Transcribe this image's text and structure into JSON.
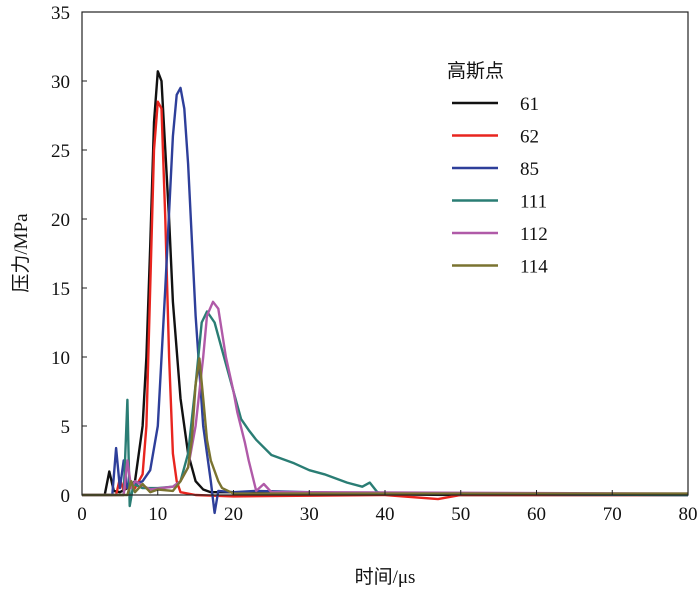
{
  "chart_data": {
    "type": "line",
    "title": "",
    "xlabel": "时间/μs",
    "ylabel": "压力/MPa",
    "xlim": [
      0,
      80
    ],
    "ylim": [
      0,
      35
    ],
    "xticks": [
      0,
      10,
      20,
      30,
      40,
      50,
      60,
      70,
      80
    ],
    "yticks": [
      0,
      5,
      10,
      15,
      20,
      25,
      30,
      35
    ],
    "grid": false,
    "legend": {
      "title": "高斯点",
      "placement": "top-right"
    },
    "series": [
      {
        "name": "61",
        "color": "#111111",
        "x": [
          0,
          3,
          3.6,
          4.2,
          5,
          6,
          7,
          8,
          8.5,
          9,
          9.5,
          10,
          10.5,
          11,
          11.5,
          12,
          13,
          14,
          15,
          16,
          17,
          20,
          30,
          50,
          80
        ],
        "y": [
          0,
          0,
          1.7,
          0.3,
          0.2,
          0.5,
          1,
          5,
          10,
          18,
          27,
          30.7,
          30,
          25,
          20,
          14,
          7,
          3,
          1,
          0.4,
          0.2,
          0.2,
          0.1,
          0,
          0
        ]
      },
      {
        "name": "62",
        "color": "#e8251f",
        "x": [
          0,
          4.5,
          5,
          5.5,
          6,
          7,
          8,
          8.5,
          9,
          9.5,
          10,
          10.5,
          11,
          11.5,
          12,
          12.5,
          13,
          15,
          20,
          40,
          47,
          50,
          80
        ],
        "y": [
          0,
          0,
          1.2,
          0.3,
          0.8,
          0.5,
          1.5,
          5,
          15,
          25,
          28.5,
          28,
          20,
          10,
          3,
          1,
          0.2,
          0,
          -0.1,
          0,
          -0.3,
          0,
          0
        ]
      },
      {
        "name": "85",
        "color": "#2e3f9a",
        "x": [
          0,
          4,
          4.5,
          5,
          5.5,
          6,
          7,
          8,
          9,
          10,
          11,
          12,
          12.5,
          13,
          13.5,
          14,
          15,
          16,
          17,
          17.5,
          18,
          20,
          23,
          30,
          40,
          80
        ],
        "y": [
          0,
          0,
          3.4,
          0.5,
          2.5,
          0.5,
          0.8,
          1,
          1.8,
          5,
          15,
          26,
          29,
          29.5,
          28,
          24,
          13,
          5,
          1,
          -1.3,
          0.3,
          0.2,
          0.3,
          0.2,
          0.1,
          0
        ]
      },
      {
        "name": "111",
        "color": "#2a7d74",
        "x": [
          0,
          5.5,
          6,
          6.3,
          6.8,
          8,
          10,
          12,
          13,
          14,
          15,
          15.8,
          16.5,
          17.5,
          18.5,
          20,
          21,
          22,
          23,
          25,
          28,
          30,
          32,
          35,
          37,
          38,
          39,
          40,
          80
        ],
        "y": [
          0,
          0,
          6.9,
          -0.8,
          0.8,
          0.5,
          0.5,
          0.6,
          1,
          3,
          8,
          12.5,
          13.3,
          12.5,
          10.5,
          7.5,
          5.5,
          4.7,
          4,
          2.9,
          2.3,
          1.8,
          1.5,
          0.9,
          0.6,
          0.9,
          0.2,
          0.1,
          0
        ]
      },
      {
        "name": "112",
        "color": "#b05aa8",
        "x": [
          0,
          5.5,
          6,
          6.5,
          7,
          9,
          12,
          13,
          14,
          15,
          16,
          16.5,
          17.3,
          18,
          19,
          20,
          20.5,
          21.5,
          22,
          23,
          24,
          25,
          30,
          80
        ],
        "y": [
          0,
          0,
          2.5,
          0.5,
          1,
          0.4,
          0.6,
          1,
          2,
          5,
          10,
          13,
          14,
          13.5,
          10,
          7.5,
          6,
          3.8,
          2.5,
          0.3,
          0.8,
          0.2,
          0.2,
          0.1
        ]
      },
      {
        "name": "114",
        "color": "#7a7330",
        "x": [
          0,
          6,
          6.5,
          7,
          8,
          9,
          10,
          12,
          13,
          14,
          14.5,
          15,
          15.5,
          16,
          16.5,
          17,
          18,
          18.5,
          20,
          30,
          80
        ],
        "y": [
          0,
          0,
          1,
          0.2,
          0.8,
          0.2,
          0.4,
          0.3,
          1,
          2,
          4,
          8,
          9.9,
          7,
          4,
          2.5,
          1,
          0.5,
          0.1,
          0.1,
          0.1
        ]
      }
    ]
  }
}
